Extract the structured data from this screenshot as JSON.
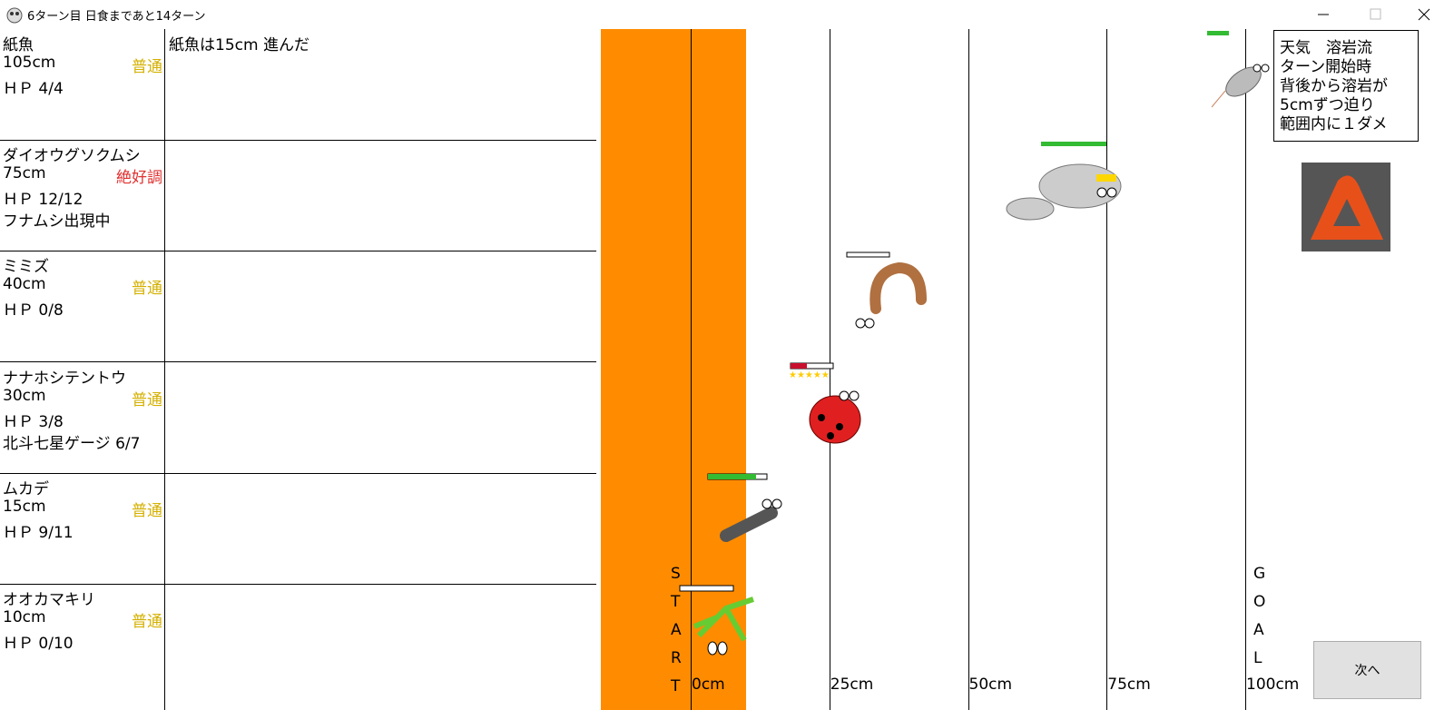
{
  "window": {
    "title": "6ターン目 日食まであと14ターン",
    "button": "次へ"
  },
  "racers": [
    {
      "name": "紙魚",
      "distance": "105cm",
      "condition": "普通",
      "condition_color": "#d4b000",
      "hp": "ＨＰ 4/4",
      "log": "紙魚は15cm 進んだ"
    },
    {
      "name": "ダイオウグソクムシ",
      "distance": "75cm",
      "condition": "絶好調",
      "condition_color": "#e03030",
      "hp": "ＨＰ 12/12",
      "extra": "フナムシ出現中"
    },
    {
      "name": "ミミズ",
      "distance": "40cm",
      "condition": "普通",
      "condition_color": "#d4b000",
      "hp": "ＨＰ 0/8"
    },
    {
      "name": "ナナホシテントウ",
      "distance": "30cm",
      "condition": "普通",
      "condition_color": "#d4b000",
      "hp": "ＨＰ 3/8",
      "extra": "北斗七星ゲージ 6/7"
    },
    {
      "name": "ムカデ",
      "distance": "15cm",
      "condition": "普通",
      "condition_color": "#d4b000",
      "hp": "ＨＰ 9/11"
    },
    {
      "name": "オオカマキリ",
      "distance": "10cm",
      "condition": "普通",
      "condition_color": "#d4b000",
      "hp": "ＨＰ 0/10"
    }
  ],
  "track": {
    "start_letters": [
      "S",
      "T",
      "A",
      "R",
      "T"
    ],
    "goal_letters": [
      "G",
      "O",
      "A",
      "L"
    ],
    "scale_labels": [
      "0cm",
      "25cm",
      "50cm",
      "75cm",
      "100cm"
    ]
  },
  "weather": {
    "lines": [
      "天気　溶岩流",
      "ターン開始時",
      "背後から溶岩が",
      "5cmずつ迫り",
      "範囲内に１ダメ"
    ]
  }
}
